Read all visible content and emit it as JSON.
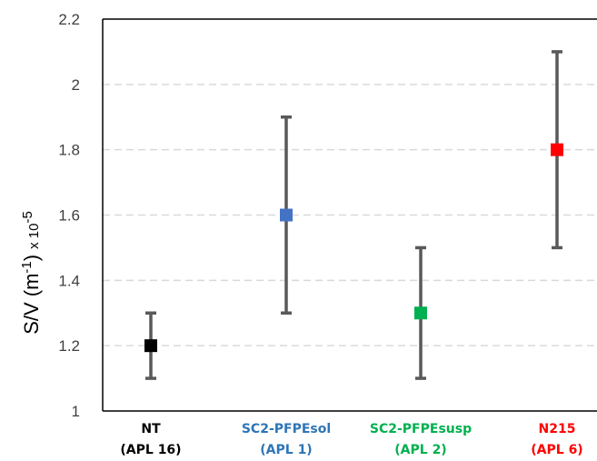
{
  "chart_data": {
    "type": "scatter",
    "ylim": [
      1,
      2.2
    ],
    "yticks": [
      1,
      1.2,
      1.4,
      1.6,
      1.8,
      2,
      2.2
    ],
    "ytick_labels": [
      "1",
      "1.2",
      "1.4",
      "1.6",
      "1.8",
      "2",
      "2.2"
    ],
    "grid": "horizontal-dashed",
    "ylabel": {
      "main": "S/V  (m",
      "superscript": "-1",
      "close": ")",
      "scale": "x 10",
      "scale_exp": "-5"
    },
    "points": [
      {
        "line1": "NT",
        "line2": "(APL 16)",
        "value": 1.2,
        "low": 1.1,
        "high": 1.3,
        "color": "#000000",
        "label_color": "#000000"
      },
      {
        "line1": "SC2-PFPEsol",
        "line2": "(APL 1)",
        "value": 1.6,
        "low": 1.3,
        "high": 1.9,
        "color": "#4472c4",
        "label_color": "#2e75b6"
      },
      {
        "line1": "SC2-PFPEsusp",
        "line2": "(APL 2)",
        "value": 1.3,
        "low": 1.1,
        "high": 1.5,
        "color": "#00b050",
        "label_color": "#00b050"
      },
      {
        "line1": "N215",
        "line2": "(APL 6)",
        "value": 1.8,
        "low": 1.5,
        "high": 2.1,
        "color": "#ff0000",
        "label_color": "#ff0000"
      }
    ],
    "colors": {
      "errorbar": "#595959",
      "grid": "#d9d9d9",
      "axis": "#000000"
    }
  }
}
